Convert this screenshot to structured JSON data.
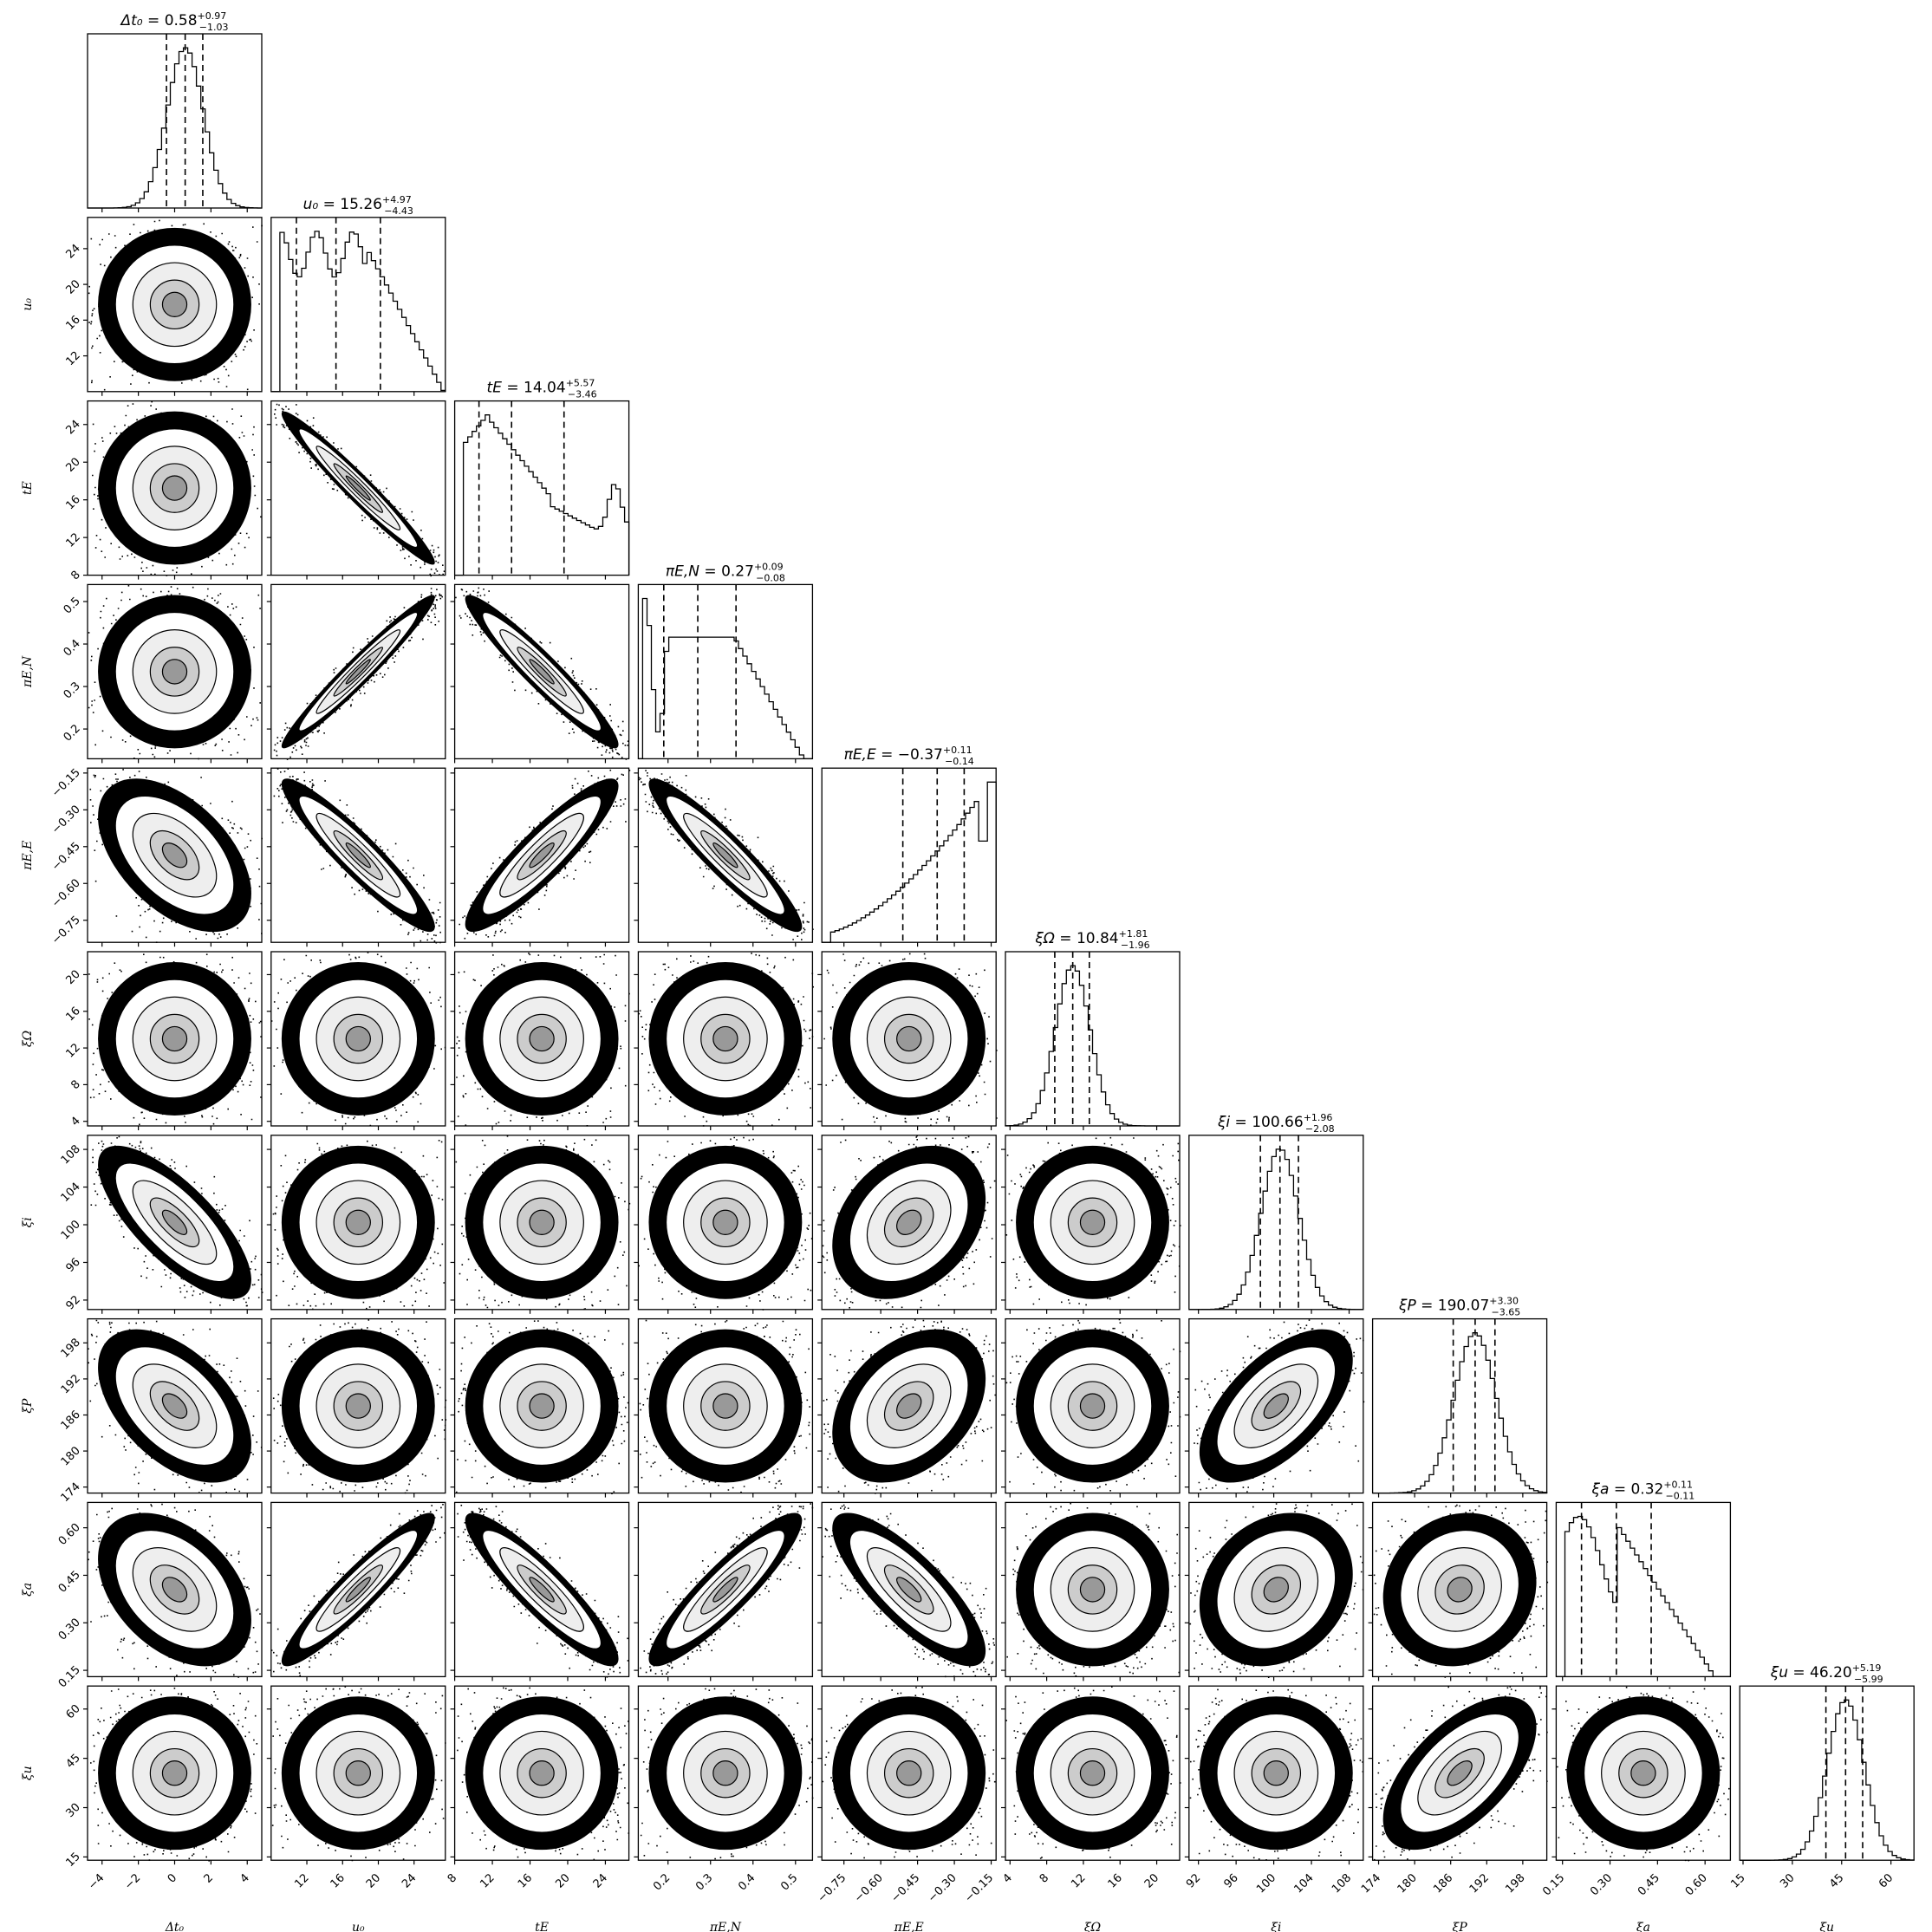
{
  "chart_data": {
    "type": "corner",
    "title": "",
    "grid": false,
    "parameters": [
      {
        "label": "Δt₀",
        "title_name": "Δt₀",
        "median": "0.58",
        "plus": "+0.97",
        "minus": "−1.03",
        "range": [
          -4.8,
          4.8
        ],
        "ticks": [
          -4,
          -2,
          0,
          2,
          4
        ],
        "tick_labels": [
          "−4",
          "−2",
          "0",
          "2",
          "4"
        ],
        "quantiles": [
          -0.45,
          0.58,
          1.55
        ],
        "hist_shape": "gaussian",
        "mean": 0.58,
        "sigma": 1.0
      },
      {
        "label": "u₀",
        "title_name": "u₀",
        "median": "15.26",
        "plus": "+4.97",
        "minus": "−4.43",
        "range": [
          8.0,
          27.5
        ],
        "ticks": [
          12,
          16,
          20,
          24
        ],
        "tick_labels": [
          "12",
          "16",
          "20",
          "24"
        ],
        "quantiles": [
          10.83,
          15.26,
          20.23
        ],
        "hist_shape": "flat-decay",
        "mean": 15.26,
        "sigma": 4.7
      },
      {
        "label": "tE",
        "title_name": "tE",
        "median": "14.04",
        "plus": "+5.57",
        "minus": "−3.46",
        "range": [
          8.0,
          26.5
        ],
        "ticks": [
          8,
          12,
          16,
          20,
          24
        ],
        "tick_labels": [
          "8",
          "12",
          "16",
          "20",
          "24"
        ],
        "quantiles": [
          10.58,
          14.04,
          19.61
        ],
        "hist_shape": "peak-tail-bump",
        "mean": 14.04,
        "sigma": 4.5
      },
      {
        "label": "πE,N",
        "title_name": "πE,N",
        "median": "0.27",
        "plus": "+0.09",
        "minus": "−0.08",
        "range": [
          0.13,
          0.54
        ],
        "ticks": [
          0.2,
          0.3,
          0.4,
          0.5
        ],
        "tick_labels": [
          "0.2",
          "0.3",
          "0.4",
          "0.5"
        ],
        "quantiles": [
          0.19,
          0.27,
          0.36
        ],
        "hist_shape": "plateau",
        "mean": 0.27,
        "sigma": 0.085
      },
      {
        "label": "πE,E",
        "title_name": "πE,E",
        "median": "−0.37",
        "plus": "+0.11",
        "minus": "−0.14",
        "range": [
          -0.84,
          -0.13
        ],
        "ticks": [
          -0.75,
          -0.6,
          -0.45,
          -0.3,
          -0.15
        ],
        "tick_labels": [
          "−0.75",
          "−0.60",
          "−0.45",
          "−0.30",
          "−0.15"
        ],
        "quantiles": [
          -0.51,
          -0.37,
          -0.26
        ],
        "hist_shape": "rising",
        "mean": -0.37,
        "sigma": 0.12
      },
      {
        "label": "ξΩ",
        "title_name": "ξΩ",
        "median": "10.84",
        "plus": "+1.81",
        "minus": "−1.96",
        "range": [
          3.5,
          22.5
        ],
        "ticks": [
          4,
          8,
          12,
          16,
          20
        ],
        "tick_labels": [
          "4",
          "8",
          "12",
          "16",
          "20"
        ],
        "quantiles": [
          8.88,
          10.84,
          12.65
        ],
        "hist_shape": "gaussian",
        "mean": 10.84,
        "sigma": 1.9
      },
      {
        "label": "ξi",
        "title_name": "ξi",
        "median": "100.66",
        "plus": "+1.96",
        "minus": "−2.08",
        "range": [
          91.0,
          109.5
        ],
        "ticks": [
          92,
          96,
          100,
          104,
          108
        ],
        "tick_labels": [
          "92",
          "96",
          "100",
          "104",
          "108"
        ],
        "quantiles": [
          98.58,
          100.66,
          102.62
        ],
        "hist_shape": "gaussian",
        "mean": 100.66,
        "sigma": 2.0
      },
      {
        "label": "ξP",
        "title_name": "ξP",
        "median": "190.07",
        "plus": "+3.30",
        "minus": "−3.65",
        "range": [
          173.0,
          202.0
        ],
        "ticks": [
          174,
          180,
          186,
          192,
          198
        ],
        "tick_labels": [
          "174",
          "180",
          "186",
          "192",
          "198"
        ],
        "quantiles": [
          186.42,
          190.07,
          193.37
        ],
        "hist_shape": "gaussian",
        "mean": 190.07,
        "sigma": 3.5
      },
      {
        "label": "ξa",
        "title_name": "ξa",
        "median": "0.32",
        "plus": "+0.11",
        "minus": "−0.11",
        "range": [
          0.13,
          0.68
        ],
        "ticks": [
          0.15,
          0.3,
          0.45,
          0.6
        ],
        "tick_labels": [
          "0.15",
          "0.30",
          "0.45",
          "0.60"
        ],
        "quantiles": [
          0.21,
          0.32,
          0.43
        ],
        "hist_shape": "skewed",
        "mean": 0.32,
        "sigma": 0.11
      },
      {
        "label": "ξu",
        "title_name": "ξu",
        "median": "46.20",
        "plus": "+5.19",
        "minus": "−5.99",
        "range": [
          14.0,
          67.0
        ],
        "ticks": [
          15,
          30,
          45,
          60
        ],
        "tick_labels": [
          "15",
          "30",
          "45",
          "60"
        ],
        "quantiles": [
          40.21,
          46.2,
          51.39
        ],
        "hist_shape": "gaussian",
        "mean": 46.2,
        "sigma": 5.6
      }
    ],
    "correlations": {
      "0-4": -0.5,
      "0-6": -0.75,
      "0-7": -0.5,
      "0-8": -0.4,
      "1-2": -0.97,
      "1-3": 0.97,
      "1-4": -0.93,
      "1-8": 0.93,
      "2-3": -0.95,
      "2-4": 0.9,
      "2-8": -0.9,
      "3-4": -0.93,
      "3-8": 0.9,
      "4-6": 0.3,
      "4-7": 0.35,
      "4-8": -0.8,
      "6-7": 0.6,
      "6-8": 0.2,
      "7-8": 0.1,
      "7-9": 0.6
    }
  }
}
